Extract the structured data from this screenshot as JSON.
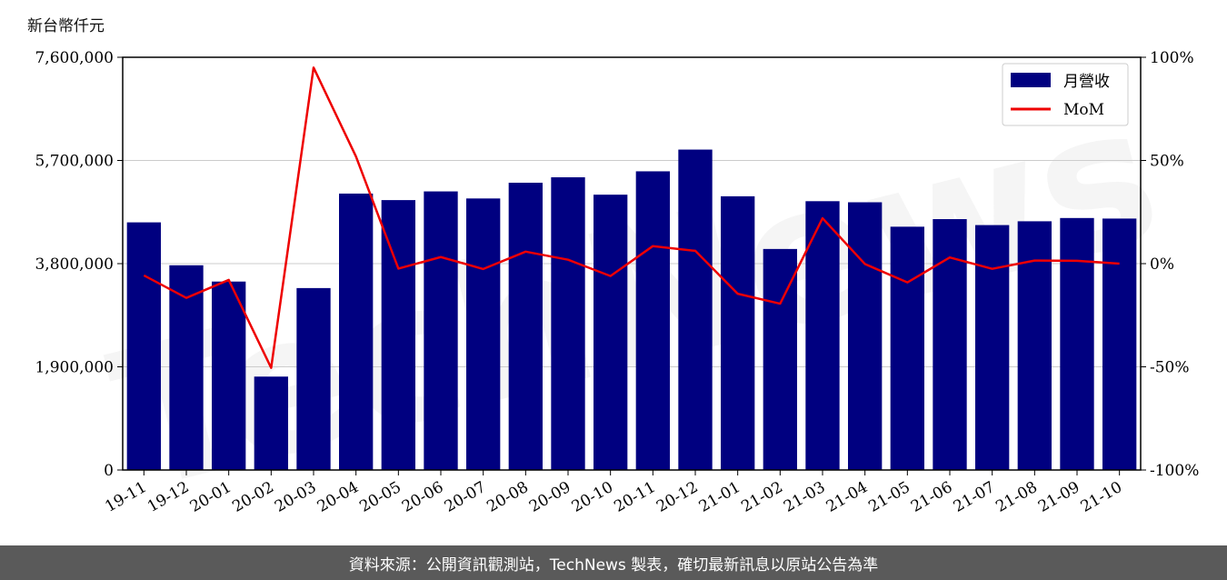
{
  "unit_label": "新台幣仟元",
  "footer_text": "資料來源：公開資訊觀測站，TechNews 製表，確切最新訊息以原站公告為準",
  "watermark_text": "TechNews",
  "colors": {
    "bar": "#000080",
    "line": "#ee0000",
    "grid": "#cccccc",
    "footer_bg": "#5a5a5a"
  },
  "chart_data": {
    "type": "bar",
    "categories": [
      "19-11",
      "19-12",
      "20-01",
      "20-02",
      "20-03",
      "20-04",
      "20-05",
      "20-06",
      "20-07",
      "20-08",
      "20-09",
      "20-10",
      "20-11",
      "20-12",
      "21-01",
      "21-02",
      "21-03",
      "21-04",
      "21-05",
      "21-06",
      "21-07",
      "21-08",
      "21-09",
      "21-10"
    ],
    "series": [
      {
        "name": "月營收",
        "type": "bar",
        "axis": "left",
        "values": [
          4560000,
          3770000,
          3470000,
          1720000,
          3350000,
          5090000,
          4970000,
          5130000,
          5000000,
          5290000,
          5390000,
          5070000,
          5500000,
          5900000,
          5040000,
          4070000,
          4950000,
          4930000,
          4480000,
          4620000,
          4510000,
          4580000,
          4640000,
          4630000
        ]
      },
      {
        "name": "MoM",
        "type": "line",
        "axis": "right",
        "values": [
          -5.7,
          -16.6,
          -7.9,
          -50.5,
          95.0,
          51.9,
          -2.4,
          3.2,
          -2.6,
          5.8,
          1.9,
          -6.0,
          8.5,
          6.2,
          -14.6,
          -19.4,
          22.0,
          -0.2,
          -9.1,
          3.0,
          -2.5,
          1.5,
          1.4,
          0.0
        ]
      }
    ],
    "y_left": {
      "min": 0,
      "max": 7600000,
      "ticks": [
        "0",
        "1,900,000",
        "3,800,000",
        "5,700,000",
        "7,600,000"
      ]
    },
    "y_right": {
      "min": -100,
      "max": 100,
      "ticks": [
        "-100%",
        "-50%",
        "0%",
        "50%",
        "100%"
      ]
    },
    "grid": true,
    "legend_position": "top-right"
  }
}
